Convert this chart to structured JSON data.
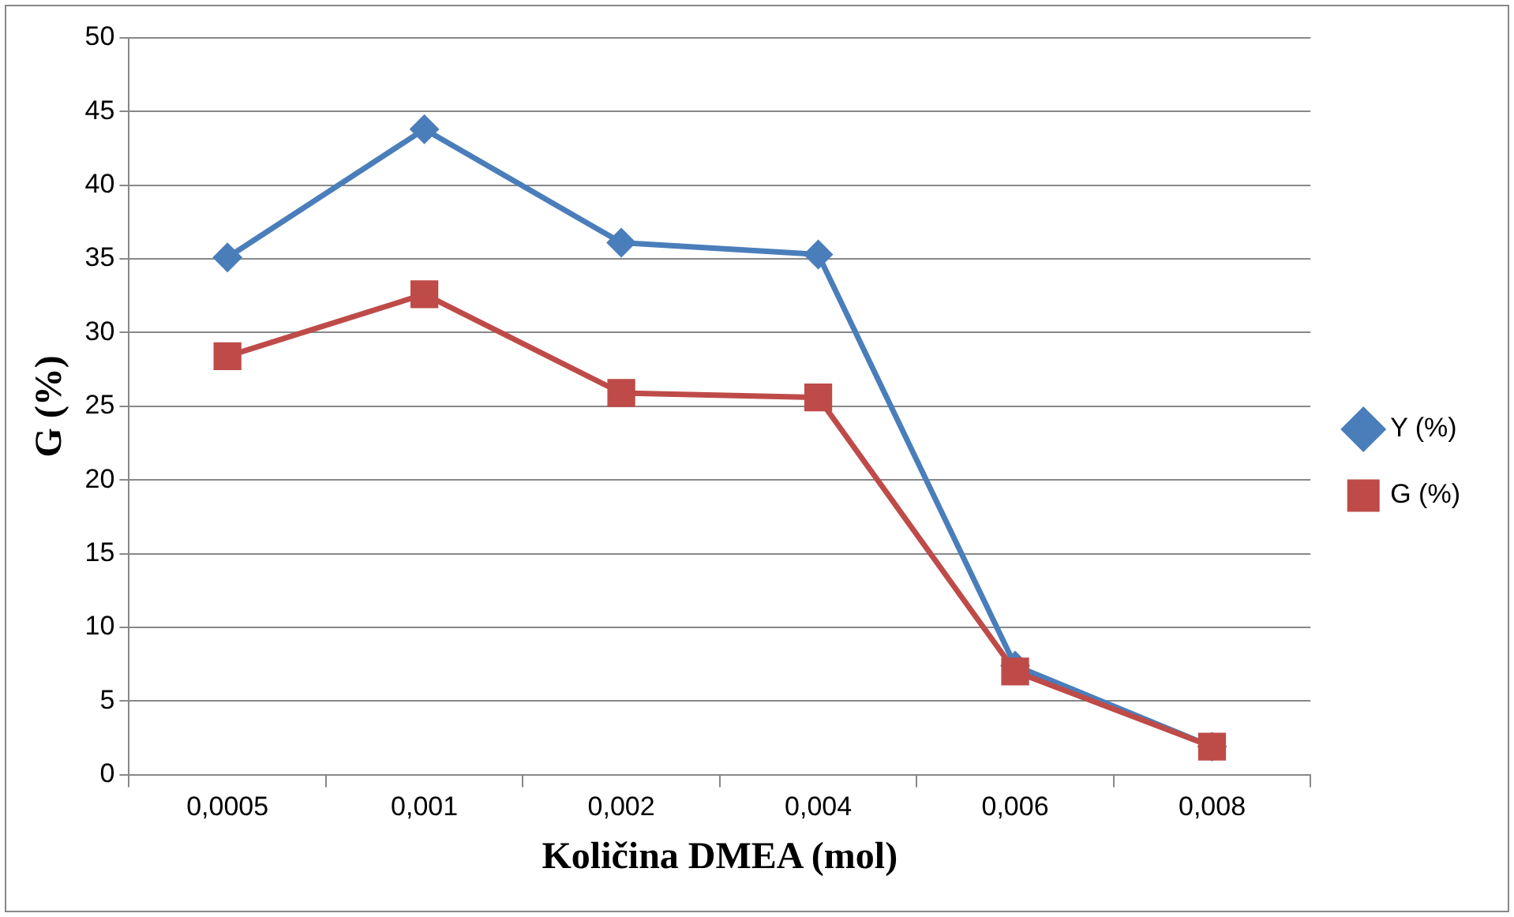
{
  "chart_data": {
    "type": "line",
    "xlabel": "Količina DMEA (mol)",
    "ylabel": "G (%)",
    "categories": [
      "0,0005",
      "0,001",
      "0,002",
      "0,004",
      "0,006",
      "0,008"
    ],
    "series": [
      {
        "name": "Y (%)",
        "color": "#4a7ebb",
        "marker": "diamond",
        "values": [
          35.1,
          43.8,
          36.1,
          35.3,
          7.4,
          1.9
        ]
      },
      {
        "name": "G (%)",
        "color": "#be4b48",
        "marker": "square",
        "values": [
          28.4,
          32.6,
          25.9,
          25.6,
          7.0,
          1.9
        ]
      }
    ],
    "ylim": [
      0,
      50
    ],
    "yticks": [
      0,
      5,
      10,
      15,
      20,
      25,
      30,
      35,
      40,
      45,
      50
    ],
    "grid": "y",
    "legend": "right",
    "line_style": "solid"
  }
}
